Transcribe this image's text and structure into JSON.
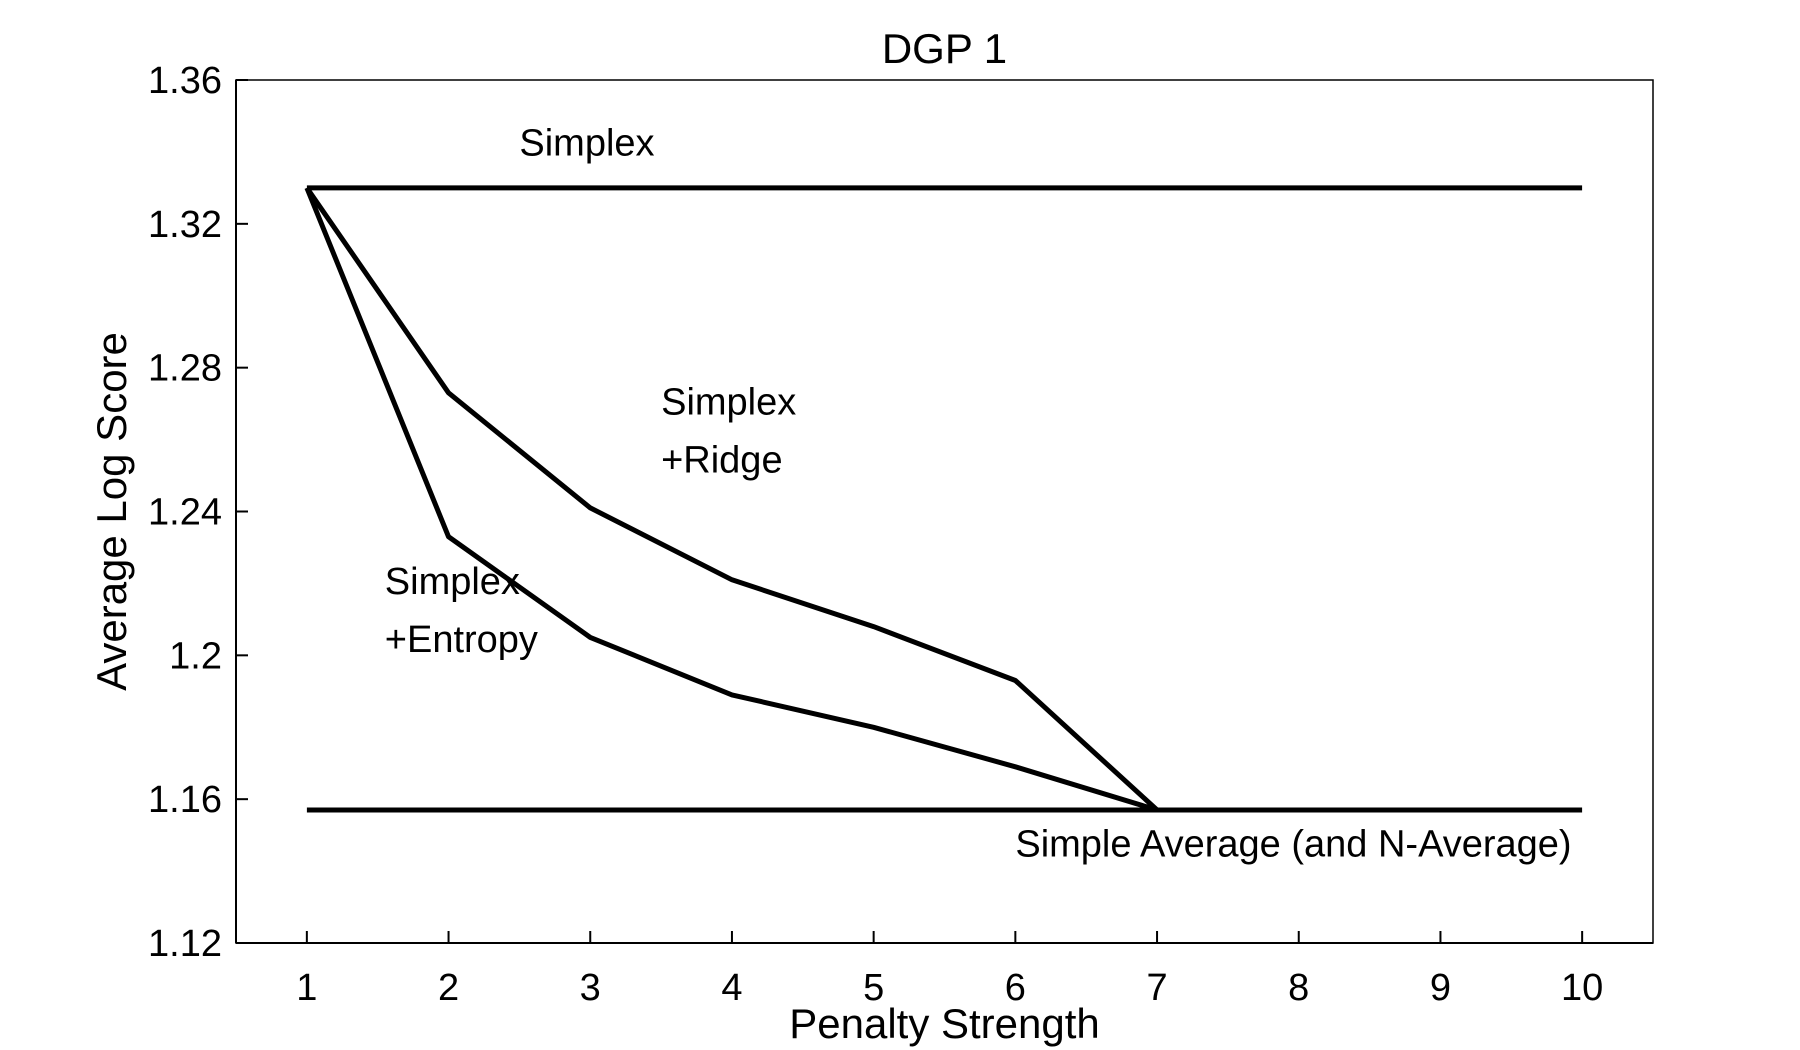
{
  "chart_data": {
    "type": "line",
    "title": "DGP 1",
    "xlabel": "Penalty Strength",
    "ylabel": "Average Log Score",
    "xlim": [
      0.5,
      10.5
    ],
    "ylim": [
      1.12,
      1.36
    ],
    "xticks": [
      1,
      2,
      3,
      4,
      5,
      6,
      7,
      8,
      9,
      10
    ],
    "xtick_labels": [
      "1",
      "2",
      "3",
      "4",
      "5",
      "6",
      "7",
      "8",
      "9",
      "10"
    ],
    "yticks": [
      1.12,
      1.16,
      1.2,
      1.24,
      1.28,
      1.32,
      1.36
    ],
    "ytick_labels": [
      "1.12",
      "1.16",
      "1.2",
      "1.24",
      "1.28",
      "1.32",
      "1.36"
    ],
    "grid": false,
    "legend": "none",
    "color": "#000000",
    "series": [
      {
        "key": "simplex",
        "x": [
          1,
          10
        ],
        "y": [
          1.33,
          1.33
        ]
      },
      {
        "key": "ridge",
        "x": [
          1,
          2,
          3,
          4,
          5,
          6,
          7
        ],
        "y": [
          1.33,
          1.273,
          1.241,
          1.221,
          1.208,
          1.193,
          1.157
        ]
      },
      {
        "key": "entropy",
        "x": [
          1,
          2,
          3,
          4,
          5,
          6,
          7
        ],
        "y": [
          1.33,
          1.233,
          1.205,
          1.189,
          1.18,
          1.169,
          1.157
        ]
      },
      {
        "key": "average",
        "x": [
          1,
          10
        ],
        "y": [
          1.157,
          1.157
        ]
      }
    ],
    "annotations": [
      {
        "key": "simplex",
        "lines": [
          "Simplex"
        ],
        "x": 2.5,
        "y": 1.339
      },
      {
        "key": "ridge",
        "lines": [
          "Simplex",
          "+Ridge"
        ],
        "x": 3.5,
        "y": 1.267
      },
      {
        "key": "entropy",
        "lines": [
          "Simplex",
          "+Entropy"
        ],
        "x": 1.55,
        "y": 1.217
      },
      {
        "key": "average",
        "lines": [
          "Simple Average (and N-Average)"
        ],
        "x": 6.0,
        "y": 1.144
      }
    ]
  }
}
